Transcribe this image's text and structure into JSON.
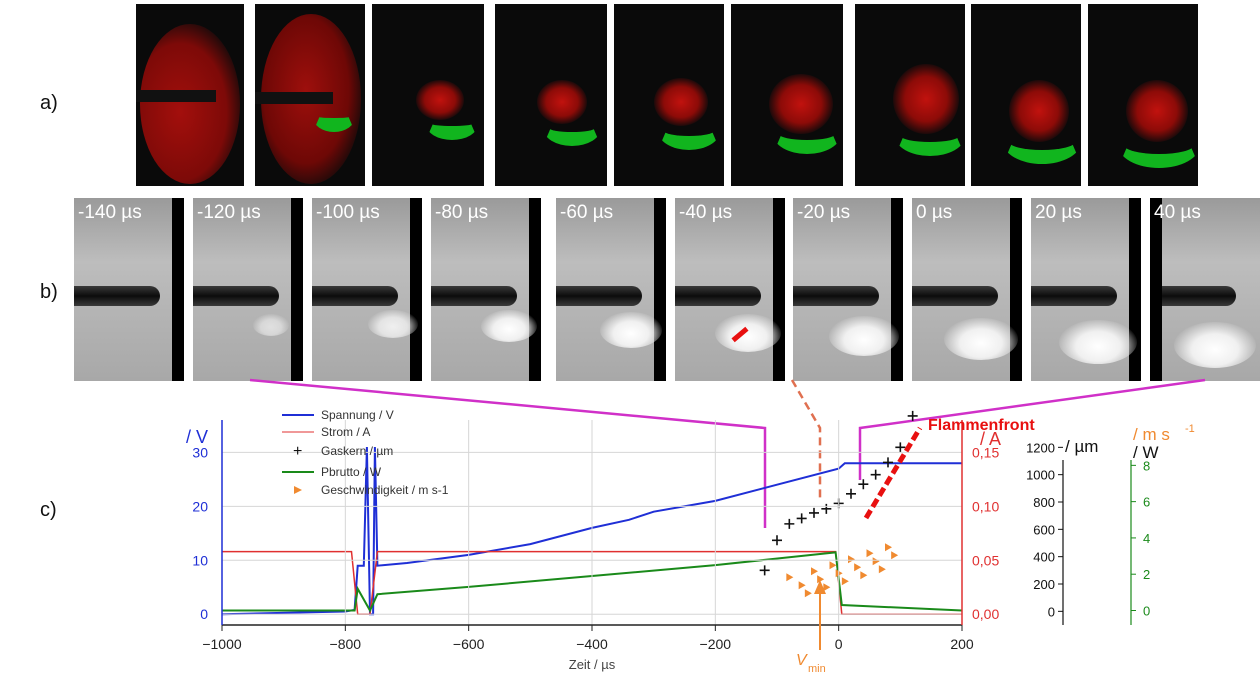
{
  "figure": {
    "panel_a_label": "a)",
    "panel_b_label": "b)",
    "panel_c_label": "c)",
    "time_labels": [
      "-140 µs",
      "-120 µs",
      "-100 µs",
      "-80 µs",
      "-60 µs",
      "-40 µs",
      "-20 µs",
      "0 µs",
      "20 µs",
      "40 µs"
    ],
    "annotation_flammenfront": "Flammenfront",
    "annotation_vmin": "V",
    "annotation_vmin_sub": "min"
  },
  "colors": {
    "voltage": "#1f2fd6",
    "current": "#e03030",
    "kernel": "#111111",
    "power": "#1a8a1a",
    "speed": "#f08a30",
    "connector": "#d030c8",
    "flame_front": "#e81010"
  },
  "chart_data": {
    "type": "line",
    "xlabel": "Zeit / µs",
    "x_ticks": [
      "-1000",
      "-800",
      "-600",
      "-400",
      "-200",
      "0",
      "200"
    ],
    "xlim": [
      -1000,
      200
    ],
    "axes": {
      "voltage": {
        "label": "/ V",
        "ticks": [
          "0",
          "10",
          "20",
          "30"
        ],
        "ylim": [
          -2,
          36
        ]
      },
      "current": {
        "label": "/ A",
        "ticks": [
          "0,00",
          "0,05",
          "0,10",
          "0,15"
        ],
        "ylim": [
          -0.01,
          0.18
        ]
      },
      "kernel": {
        "label": "/ µm",
        "ticks": [
          "0",
          "200",
          "400",
          "600",
          "800",
          "1000",
          "1200"
        ],
        "ylim": [
          -100,
          1400
        ]
      },
      "speed": {
        "label": "/ m s",
        "sup": "-1"
      },
      "power": {
        "label": "/ W",
        "ticks": [
          "0",
          "2",
          "4",
          "6",
          "8"
        ],
        "ylim": [
          -0.8,
          10.5
        ]
      }
    },
    "legend": {
      "position": "top-left",
      "entries": [
        "Spannung / V",
        "Strom / A",
        "Gaskern / µm",
        "Pbrutto / W",
        "Geschwindigkeit / m s-1"
      ]
    },
    "series": [
      {
        "name": "Spannung / V",
        "axis": "voltage",
        "points": [
          [
            -1000,
            0
          ],
          [
            -800,
            0.5
          ],
          [
            -785,
            0.8
          ],
          [
            -780,
            9
          ],
          [
            -770,
            9
          ],
          [
            -765,
            31
          ],
          [
            -760,
            0
          ],
          [
            -755,
            0
          ],
          [
            -752,
            31
          ],
          [
            -748,
            9
          ],
          [
            -700,
            9.5
          ],
          [
            -600,
            11
          ],
          [
            -500,
            13
          ],
          [
            -400,
            16
          ],
          [
            -340,
            17.5
          ],
          [
            -300,
            19
          ],
          [
            -200,
            21
          ],
          [
            -100,
            24
          ],
          [
            0,
            27
          ],
          [
            10,
            28
          ],
          [
            200,
            28
          ]
        ]
      },
      {
        "name": "Strom / A",
        "axis": "current",
        "points": [
          [
            -1000,
            0.058
          ],
          [
            -790,
            0.058
          ],
          [
            -780,
            0.0
          ],
          [
            -760,
            0.0
          ],
          [
            -748,
            0.058
          ],
          [
            -340,
            0.058
          ],
          [
            -5,
            0.058
          ],
          [
            5,
            0.0
          ],
          [
            200,
            0.0
          ]
        ]
      },
      {
        "name": "Pbrutto / W",
        "axis": "power",
        "points": [
          [
            -1000,
            0
          ],
          [
            -785,
            0
          ],
          [
            -780,
            1.2
          ],
          [
            -760,
            0
          ],
          [
            -748,
            0.9
          ],
          [
            -600,
            1.3
          ],
          [
            -400,
            1.9
          ],
          [
            -200,
            2.5
          ],
          [
            -5,
            3.2
          ],
          [
            5,
            0.3
          ],
          [
            200,
            0
          ]
        ]
      },
      {
        "name": "Gaskern / µm",
        "axis": "kernel",
        "points": [
          [
            -120,
            300
          ],
          [
            -100,
            520
          ],
          [
            -80,
            640
          ],
          [
            -60,
            680
          ],
          [
            -40,
            720
          ],
          [
            -20,
            750
          ],
          [
            0,
            790
          ],
          [
            20,
            860
          ],
          [
            40,
            930
          ],
          [
            60,
            1000
          ],
          [
            80,
            1090
          ],
          [
            100,
            1200
          ],
          [
            120,
            1430
          ]
        ]
      },
      {
        "name": "Geschwindigkeit / m s-1",
        "axis": "kernel",
        "points": [
          [
            -80,
            0
          ],
          [
            -60,
            0
          ],
          [
            -50,
            0
          ],
          [
            -40,
            0
          ],
          [
            -30,
            0
          ],
          [
            -20,
            0
          ],
          [
            -10,
            0
          ],
          [
            0,
            0
          ],
          [
            10,
            0
          ],
          [
            20,
            0
          ],
          [
            30,
            0
          ],
          [
            40,
            0
          ],
          [
            50,
            0
          ],
          [
            60,
            0
          ],
          [
            70,
            0
          ],
          [
            80,
            0
          ],
          [
            90,
            0
          ]
        ]
      }
    ]
  }
}
